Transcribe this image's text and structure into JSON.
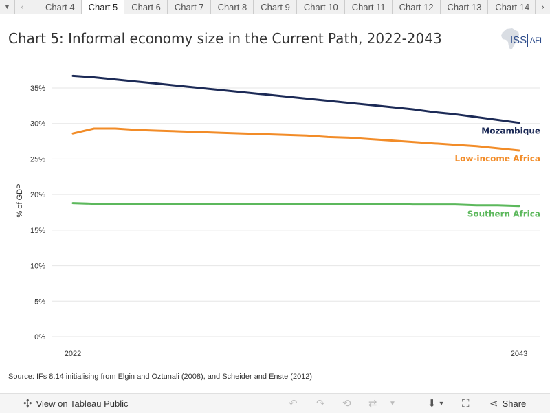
{
  "tabs": {
    "items": [
      "Chart 4",
      "Chart 5",
      "Chart 6",
      "Chart 7",
      "Chart 8",
      "Chart 9",
      "Chart 10",
      "Chart 11",
      "Chart 12",
      "Chart 13",
      "Chart 14"
    ],
    "active_index": 1
  },
  "header": {
    "title": "Chart 5: Informal economy size in the Current Path, 2022-2043",
    "logo_text": "ISS",
    "logo_sub": "AFI"
  },
  "chart_data": {
    "type": "line",
    "ylabel": "% of GDP",
    "xlabel": "",
    "x_ticks": [
      "2022",
      "2043"
    ],
    "y_ticks": [
      "0%",
      "5%",
      "10%",
      "15%",
      "20%",
      "25%",
      "30%",
      "35%"
    ],
    "ylim": [
      0,
      38
    ],
    "xlim": [
      2022,
      2043
    ],
    "grid": true,
    "legend": "inline-end-labels",
    "x": [
      2022,
      2023,
      2024,
      2025,
      2026,
      2027,
      2028,
      2029,
      2030,
      2031,
      2032,
      2033,
      2034,
      2035,
      2036,
      2037,
      2038,
      2039,
      2040,
      2041,
      2042,
      2043
    ],
    "series": [
      {
        "name": "Mozambique",
        "color": "#1c2a56",
        "values": [
          36.7,
          36.5,
          36.2,
          35.9,
          35.6,
          35.3,
          35.0,
          34.7,
          34.4,
          34.1,
          33.8,
          33.5,
          33.2,
          32.9,
          32.6,
          32.3,
          32.0,
          31.6,
          31.3,
          30.9,
          30.5,
          30.1
        ]
      },
      {
        "name": "Low-income Africa",
        "color": "#f28c28",
        "values": [
          28.6,
          29.3,
          29.3,
          29.1,
          29.0,
          28.9,
          28.8,
          28.7,
          28.6,
          28.5,
          28.4,
          28.3,
          28.1,
          28.0,
          27.8,
          27.6,
          27.4,
          27.2,
          27.0,
          26.8,
          26.5,
          26.2
        ]
      },
      {
        "name": "Southern Africa",
        "color": "#5cb85c",
        "values": [
          18.8,
          18.7,
          18.7,
          18.7,
          18.7,
          18.7,
          18.7,
          18.7,
          18.7,
          18.7,
          18.7,
          18.7,
          18.7,
          18.7,
          18.7,
          18.7,
          18.6,
          18.6,
          18.6,
          18.5,
          18.5,
          18.4
        ]
      }
    ]
  },
  "footer": {
    "source": "Source: IFs 8.14 initialising from Elgin and Oztunali (2008), and Scheider and Enste (2012)"
  },
  "toolbar": {
    "view_label": "View on Tableau Public",
    "share_label": "Share"
  }
}
